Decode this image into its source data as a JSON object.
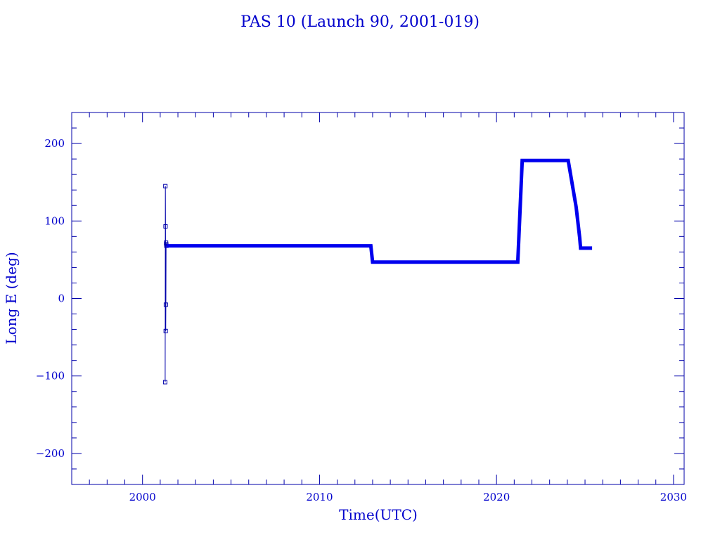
{
  "chart_data": {
    "type": "line",
    "title": "PAS 10 (Launch 90, 2001-019)",
    "xlabel": "Time(UTC)",
    "ylabel": "Long E (deg)",
    "xlim": [
      1996,
      2030.6
    ],
    "ylim": [
      -240,
      240
    ],
    "x_ticks": [
      2000,
      2010,
      2020,
      2030
    ],
    "y_ticks": [
      -200,
      -100,
      0,
      100,
      200
    ],
    "x_tick_labels": [
      "2000",
      "2010",
      "2020",
      "2030"
    ],
    "y_tick_labels": [
      "−200",
      "−100",
      "0",
      "100",
      "200"
    ],
    "x_minor_step": 1,
    "y_minor_step": 20,
    "grid": false,
    "line_color": "#0000ee",
    "frame_color": "#0000aa",
    "text_color": "#0000cc",
    "series": [
      {
        "style": "thin-markers",
        "x": [
          2001.28,
          2001.29,
          2001.3,
          2001.31,
          2001.32,
          2001.33,
          2001.34,
          2001.35
        ],
        "y": [
          -108,
          145,
          93,
          -42,
          -8,
          72,
          70,
          68
        ]
      },
      {
        "style": "thick",
        "x": [
          2001.35,
          2012.9,
          2013.0,
          2021.2,
          2021.45,
          2023.5,
          2024.05,
          2024.5,
          2024.7,
          2024.75,
          2025.4
        ],
        "y": [
          68,
          68,
          47,
          47,
          178,
          178,
          178,
          118,
          78,
          65,
          65
        ]
      }
    ]
  }
}
